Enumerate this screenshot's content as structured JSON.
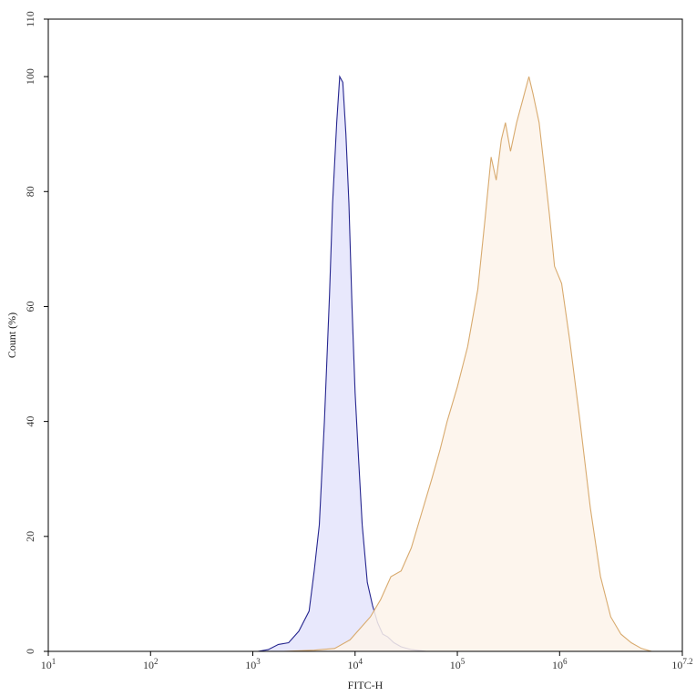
{
  "chart_data": {
    "type": "area",
    "title": "",
    "xlabel": "FITC-H",
    "ylabel": "Count (%)",
    "x_scale": "log10",
    "xlim": [
      1,
      7.2
    ],
    "ylim": [
      0,
      110
    ],
    "x_ticks": [
      {
        "value": 1,
        "base": "10",
        "exp": "1"
      },
      {
        "value": 2,
        "base": "10",
        "exp": "2"
      },
      {
        "value": 3,
        "base": "10",
        "exp": "3"
      },
      {
        "value": 4,
        "base": "10",
        "exp": "4"
      },
      {
        "value": 5,
        "base": "10",
        "exp": "5"
      },
      {
        "value": 6,
        "base": "10",
        "exp": "6"
      },
      {
        "value": 7.2,
        "base": "10",
        "exp": "7.2"
      }
    ],
    "y_ticks": [
      "0",
      "20",
      "40",
      "60",
      "80",
      "100",
      "110"
    ],
    "grid": false,
    "series": [
      {
        "stroke": "#26268f",
        "fill": "#e4e4fb",
        "points": [
          [
            1.0,
            0
          ],
          [
            3.05,
            0
          ],
          [
            3.15,
            0.3
          ],
          [
            3.25,
            1.2
          ],
          [
            3.35,
            1.5
          ],
          [
            3.45,
            3.5
          ],
          [
            3.55,
            7
          ],
          [
            3.6,
            14
          ],
          [
            3.65,
            22
          ],
          [
            3.7,
            40
          ],
          [
            3.75,
            62
          ],
          [
            3.78,
            78
          ],
          [
            3.82,
            92
          ],
          [
            3.85,
            100
          ],
          [
            3.88,
            99
          ],
          [
            3.91,
            90
          ],
          [
            3.94,
            78
          ],
          [
            3.97,
            60
          ],
          [
            4.0,
            45
          ],
          [
            4.03,
            35
          ],
          [
            4.07,
            22
          ],
          [
            4.12,
            12
          ],
          [
            4.17,
            8
          ],
          [
            4.22,
            5
          ],
          [
            4.27,
            3
          ],
          [
            4.32,
            2.5
          ],
          [
            4.38,
            1.5
          ],
          [
            4.45,
            0.8
          ],
          [
            4.55,
            0.3
          ],
          [
            4.7,
            0
          ],
          [
            7.2,
            0
          ]
        ]
      },
      {
        "stroke": "#d8aa6e",
        "fill": "#fdf3ea",
        "points": [
          [
            1.0,
            0
          ],
          [
            3.3,
            0
          ],
          [
            3.6,
            0.2
          ],
          [
            3.8,
            0.5
          ],
          [
            3.95,
            2
          ],
          [
            4.05,
            4
          ],
          [
            4.15,
            6
          ],
          [
            4.25,
            9
          ],
          [
            4.35,
            13
          ],
          [
            4.45,
            14
          ],
          [
            4.55,
            18
          ],
          [
            4.65,
            24
          ],
          [
            4.75,
            30
          ],
          [
            4.83,
            35
          ],
          [
            4.9,
            40
          ],
          [
            5.0,
            46
          ],
          [
            5.1,
            53
          ],
          [
            5.2,
            63
          ],
          [
            5.27,
            75
          ],
          [
            5.33,
            86
          ],
          [
            5.38,
            82
          ],
          [
            5.43,
            89
          ],
          [
            5.47,
            92
          ],
          [
            5.52,
            87
          ],
          [
            5.58,
            92
          ],
          [
            5.64,
            96
          ],
          [
            5.7,
            100
          ],
          [
            5.74,
            97
          ],
          [
            5.8,
            92
          ],
          [
            5.85,
            84
          ],
          [
            5.9,
            76
          ],
          [
            5.95,
            67
          ],
          [
            6.02,
            64
          ],
          [
            6.1,
            54
          ],
          [
            6.2,
            40
          ],
          [
            6.3,
            25
          ],
          [
            6.4,
            13
          ],
          [
            6.5,
            6
          ],
          [
            6.6,
            3
          ],
          [
            6.7,
            1.5
          ],
          [
            6.8,
            0.5
          ],
          [
            6.9,
            0
          ],
          [
            7.2,
            0
          ]
        ]
      }
    ]
  }
}
